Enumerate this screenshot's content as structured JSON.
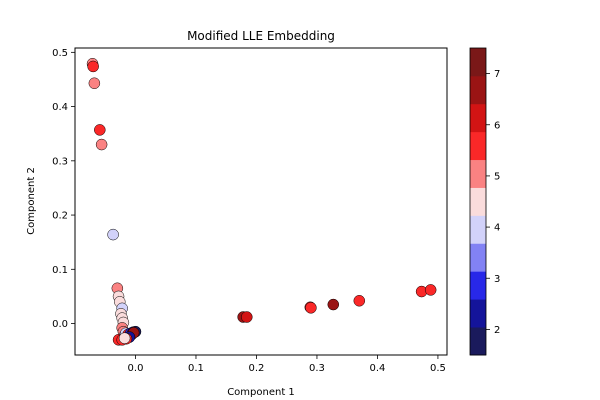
{
  "chart_data": {
    "type": "scatter",
    "title": "Modified LLE Embedding",
    "xlabel": "Component 1",
    "ylabel": "Component 2",
    "xlim": [
      -0.1,
      0.515
    ],
    "ylim": [
      -0.058,
      0.508
    ],
    "xticks": [
      0.0,
      0.1,
      0.2,
      0.3,
      0.4,
      0.5
    ],
    "xtick_labels": [
      "0.0",
      "0.1",
      "0.2",
      "0.3",
      "0.4",
      "0.5"
    ],
    "yticks": [
      0.0,
      0.1,
      0.2,
      0.3,
      0.4,
      0.5
    ],
    "ytick_labels": [
      "0.0",
      "0.1",
      "0.2",
      "0.3",
      "0.4",
      "0.5"
    ],
    "grid": false,
    "colorbar": {
      "range": [
        1.5,
        7.5
      ],
      "ticks": [
        2,
        3,
        4,
        5,
        6,
        7
      ],
      "tick_labels": [
        "2",
        "3",
        "4",
        "5",
        "6",
        "7"
      ],
      "colors": [
        "#1a1a5c",
        "#14149a",
        "#2828e8",
        "#8282f4",
        "#d2d2fa",
        "#fadcdc",
        "#fa8282",
        "#fa2828",
        "#d21414",
        "#9a1414",
        "#7a1818"
      ]
    },
    "points": [
      {
        "x": -0.071,
        "y": 0.479,
        "c": 5.2
      },
      {
        "x": -0.07,
        "y": 0.474,
        "c": 5.5
      },
      {
        "x": -0.068,
        "y": 0.443,
        "c": 4.9
      },
      {
        "x": -0.059,
        "y": 0.357,
        "c": 5.6
      },
      {
        "x": -0.056,
        "y": 0.33,
        "c": 4.9
      },
      {
        "x": -0.037,
        "y": 0.164,
        "c": 4.2
      },
      {
        "x": -0.03,
        "y": 0.065,
        "c": 4.8
      },
      {
        "x": -0.028,
        "y": 0.05,
        "c": 4.5
      },
      {
        "x": -0.026,
        "y": 0.04,
        "c": 4.3
      },
      {
        "x": -0.022,
        "y": 0.028,
        "c": 3.9
      },
      {
        "x": -0.024,
        "y": 0.018,
        "c": 4.3
      },
      {
        "x": -0.022,
        "y": 0.01,
        "c": 4.5
      },
      {
        "x": -0.02,
        "y": 0.002,
        "c": 4.6
      },
      {
        "x": -0.022,
        "y": -0.008,
        "c": 5.0
      },
      {
        "x": -0.02,
        "y": -0.015,
        "c": 4.8
      },
      {
        "x": -0.018,
        "y": -0.022,
        "c": 4.2
      },
      {
        "x": -0.016,
        "y": -0.018,
        "c": 3.8
      },
      {
        "x": -0.012,
        "y": -0.02,
        "c": 5.5
      },
      {
        "x": -0.008,
        "y": -0.018,
        "c": 2.8
      },
      {
        "x": -0.004,
        "y": -0.016,
        "c": 2.5
      },
      {
        "x": 0.0,
        "y": -0.015,
        "c": 2.0
      },
      {
        "x": -0.006,
        "y": -0.02,
        "c": 6.0
      },
      {
        "x": -0.003,
        "y": -0.017,
        "c": 6.5
      },
      {
        "x": -0.01,
        "y": -0.025,
        "c": 2.2
      },
      {
        "x": -0.015,
        "y": -0.028,
        "c": 5.6
      },
      {
        "x": -0.028,
        "y": -0.03,
        "c": 5.4
      },
      {
        "x": -0.022,
        "y": -0.03,
        "c": 5.8
      },
      {
        "x": -0.018,
        "y": -0.027,
        "c": 4.3
      },
      {
        "x": 0.178,
        "y": 0.012,
        "c": 6.5
      },
      {
        "x": 0.184,
        "y": 0.012,
        "c": 6.2
      },
      {
        "x": 0.289,
        "y": 0.03,
        "c": 5.7
      },
      {
        "x": 0.29,
        "y": 0.029,
        "c": 5.4
      },
      {
        "x": 0.327,
        "y": 0.035,
        "c": 6.6
      },
      {
        "x": 0.37,
        "y": 0.042,
        "c": 5.6
      },
      {
        "x": 0.473,
        "y": 0.059,
        "c": 5.5
      },
      {
        "x": 0.488,
        "y": 0.062,
        "c": 5.6
      }
    ]
  }
}
